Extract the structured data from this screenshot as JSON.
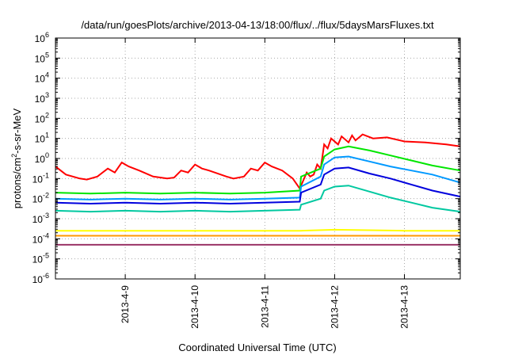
{
  "chart_data": {
    "type": "line",
    "title": "/data/run/goesPlots/archive/2013-04-13/18:00/flux/../flux/5daysMarsFluxes.txt",
    "xlabel": "Coordinated Universal Time (UTC)",
    "ylabel_parts": [
      "protons/cm",
      "2",
      "-s-sr-MeV"
    ],
    "yscale": "log",
    "ylim": [
      -6,
      6
    ],
    "yticks": [
      {
        "exp": "6"
      },
      {
        "exp": "5"
      },
      {
        "exp": "4"
      },
      {
        "exp": "3"
      },
      {
        "exp": "2"
      },
      {
        "exp": "1"
      },
      {
        "exp": "0"
      },
      {
        "exp": "-1"
      },
      {
        "exp": "-2"
      },
      {
        "exp": "-3"
      },
      {
        "exp": "-4"
      },
      {
        "exp": "-5"
      },
      {
        "exp": "-6"
      }
    ],
    "ytick_base": "10",
    "x_start": "2013-04-08 12:00",
    "xlim_days": [
      0,
      5.8
    ],
    "xticks": [
      {
        "label": "2013-4-9",
        "day": 1
      },
      {
        "label": "2013-4-10",
        "day": 2
      },
      {
        "label": "2013-4-11",
        "day": 3
      },
      {
        "label": "2013-4-12",
        "day": 4
      },
      {
        "label": "2013-4-13",
        "day": 5
      }
    ],
    "grid": true,
    "legend": "none",
    "series": [
      {
        "color": "#ff0000",
        "values": [
          [
            0,
            -0.4
          ],
          [
            0.15,
            -0.8
          ],
          [
            0.35,
            -1
          ],
          [
            0.45,
            -1.05
          ],
          [
            0.6,
            -0.9
          ],
          [
            0.75,
            -0.5
          ],
          [
            0.85,
            -0.7
          ],
          [
            0.95,
            -0.2
          ],
          [
            1.05,
            -0.4
          ],
          [
            1.2,
            -0.6
          ],
          [
            1.4,
            -0.9
          ],
          [
            1.6,
            -1
          ],
          [
            1.7,
            -0.95
          ],
          [
            1.8,
            -0.6
          ],
          [
            1.9,
            -0.7
          ],
          [
            2,
            -0.3
          ],
          [
            2.1,
            -0.5
          ],
          [
            2.2,
            -0.6
          ],
          [
            2.45,
            -0.9
          ],
          [
            2.55,
            -1
          ],
          [
            2.7,
            -0.9
          ],
          [
            2.8,
            -0.5
          ],
          [
            2.9,
            -0.6
          ],
          [
            3,
            -0.2
          ],
          [
            3.1,
            -0.4
          ],
          [
            3.25,
            -0.6
          ],
          [
            3.4,
            -1
          ],
          [
            3.5,
            -1.5
          ],
          [
            3.55,
            -1.1
          ],
          [
            3.6,
            -0.7
          ],
          [
            3.65,
            -0.9
          ],
          [
            3.7,
            -0.8
          ],
          [
            3.75,
            -0.3
          ],
          [
            3.8,
            -0.5
          ],
          [
            3.85,
            0.7
          ],
          [
            3.9,
            0.5
          ],
          [
            3.95,
            1
          ],
          [
            4.05,
            0.7
          ],
          [
            4.1,
            1.1
          ],
          [
            4.2,
            0.8
          ],
          [
            4.25,
            1.15
          ],
          [
            4.3,
            0.9
          ],
          [
            4.4,
            1.2
          ],
          [
            4.55,
            1
          ],
          [
            4.75,
            1.05
          ],
          [
            5,
            0.85
          ],
          [
            5.3,
            0.8
          ],
          [
            5.6,
            0.7
          ],
          [
            5.8,
            0.6
          ]
        ]
      },
      {
        "color": "#00e600",
        "values": [
          [
            0,
            -1.7
          ],
          [
            0.5,
            -1.75
          ],
          [
            1,
            -1.7
          ],
          [
            1.5,
            -1.75
          ],
          [
            2,
            -1.7
          ],
          [
            2.5,
            -1.75
          ],
          [
            3,
            -1.7
          ],
          [
            3.5,
            -1.6
          ],
          [
            3.52,
            -0.9
          ],
          [
            3.8,
            -0.5
          ],
          [
            3.85,
            0.1
          ],
          [
            4,
            0.45
          ],
          [
            4.2,
            0.6
          ],
          [
            4.5,
            0.4
          ],
          [
            4.8,
            0.15
          ],
          [
            5.1,
            -0.1
          ],
          [
            5.4,
            -0.35
          ],
          [
            5.8,
            -0.6
          ]
        ]
      },
      {
        "color": "#0099ff",
        "values": [
          [
            0,
            -2
          ],
          [
            0.5,
            -2.05
          ],
          [
            1,
            -2
          ],
          [
            1.5,
            -2.05
          ],
          [
            2,
            -2
          ],
          [
            2.5,
            -2.05
          ],
          [
            3,
            -2
          ],
          [
            3.5,
            -1.95
          ],
          [
            3.52,
            -1.4
          ],
          [
            3.8,
            -0.9
          ],
          [
            3.85,
            -0.3
          ],
          [
            4,
            0.05
          ],
          [
            4.2,
            0.1
          ],
          [
            4.5,
            -0.15
          ],
          [
            4.8,
            -0.4
          ],
          [
            5.1,
            -0.6
          ],
          [
            5.4,
            -0.8
          ],
          [
            5.8,
            -1.2
          ]
        ]
      },
      {
        "color": "#0000dd",
        "values": [
          [
            0,
            -2.2
          ],
          [
            0.5,
            -2.25
          ],
          [
            1,
            -2.2
          ],
          [
            1.5,
            -2.25
          ],
          [
            2,
            -2.2
          ],
          [
            2.5,
            -2.25
          ],
          [
            3,
            -2.2
          ],
          [
            3.5,
            -2.15
          ],
          [
            3.52,
            -1.7
          ],
          [
            3.8,
            -1.3
          ],
          [
            3.85,
            -0.8
          ],
          [
            4,
            -0.5
          ],
          [
            4.2,
            -0.45
          ],
          [
            4.5,
            -0.75
          ],
          [
            4.8,
            -1
          ],
          [
            5.1,
            -1.3
          ],
          [
            5.4,
            -1.6
          ],
          [
            5.8,
            -1.9
          ]
        ]
      },
      {
        "color": "#00c8a0",
        "values": [
          [
            0,
            -2.6
          ],
          [
            0.5,
            -2.65
          ],
          [
            1,
            -2.6
          ],
          [
            1.5,
            -2.65
          ],
          [
            2,
            -2.6
          ],
          [
            2.5,
            -2.65
          ],
          [
            3,
            -2.6
          ],
          [
            3.5,
            -2.55
          ],
          [
            3.52,
            -2.3
          ],
          [
            3.8,
            -2
          ],
          [
            3.85,
            -1.6
          ],
          [
            4,
            -1.4
          ],
          [
            4.2,
            -1.35
          ],
          [
            4.5,
            -1.65
          ],
          [
            4.8,
            -1.95
          ],
          [
            5.1,
            -2.2
          ],
          [
            5.4,
            -2.45
          ],
          [
            5.8,
            -2.65
          ]
        ]
      },
      {
        "color": "#ffff00",
        "values": [
          [
            0,
            -3.6
          ],
          [
            1,
            -3.6
          ],
          [
            2,
            -3.6
          ],
          [
            3,
            -3.6
          ],
          [
            3.5,
            -3.6
          ],
          [
            4,
            -3.55
          ],
          [
            5,
            -3.6
          ],
          [
            5.8,
            -3.6
          ]
        ]
      },
      {
        "color": "#ff9900",
        "values": [
          [
            0,
            -3.85
          ],
          [
            1,
            -3.85
          ],
          [
            2,
            -3.85
          ],
          [
            3,
            -3.85
          ],
          [
            4,
            -3.85
          ],
          [
            5,
            -3.85
          ],
          [
            5.8,
            -3.85
          ]
        ]
      },
      {
        "color": "#993366",
        "values": [
          [
            0,
            -4.3
          ],
          [
            1,
            -4.3
          ],
          [
            2,
            -4.3
          ],
          [
            3,
            -4.3
          ],
          [
            4,
            -4.3
          ],
          [
            5,
            -4.3
          ],
          [
            5.8,
            -4.3
          ]
        ]
      }
    ]
  }
}
